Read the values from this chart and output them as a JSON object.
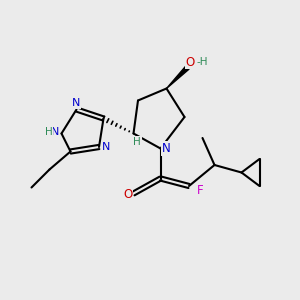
{
  "bg_color": "#ebebeb",
  "bond_color": "#000000",
  "N_color": "#0000cc",
  "O_color": "#cc0000",
  "F_color": "#cc00cc",
  "H_color": "#2e8b57",
  "figsize": [
    3.0,
    3.0
  ],
  "dpi": 100,
  "xlim": [
    0,
    10
  ],
  "ylim": [
    0,
    10
  ]
}
